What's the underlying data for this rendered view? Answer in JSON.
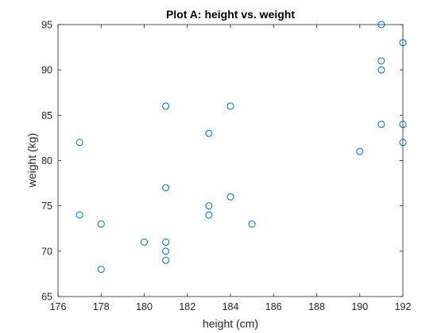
{
  "chart_data": {
    "type": "scatter",
    "title": "Plot A: height vs. weight",
    "xlabel": "height (cm)",
    "ylabel": "weight (kg)",
    "xlim": [
      176,
      192
    ],
    "ylim": [
      65,
      95
    ],
    "xticks": [
      176,
      178,
      180,
      182,
      184,
      186,
      188,
      190,
      192
    ],
    "yticks": [
      65,
      70,
      75,
      80,
      85,
      90,
      95
    ],
    "grid": false,
    "marker": "circle-open",
    "marker_color": "#0072BD",
    "series": [
      {
        "points": [
          {
            "x": 177,
            "y": 82
          },
          {
            "x": 177,
            "y": 74
          },
          {
            "x": 178,
            "y": 73
          },
          {
            "x": 178,
            "y": 68
          },
          {
            "x": 180,
            "y": 71
          },
          {
            "x": 181,
            "y": 86
          },
          {
            "x": 181,
            "y": 77
          },
          {
            "x": 181,
            "y": 71
          },
          {
            "x": 181,
            "y": 70
          },
          {
            "x": 181,
            "y": 69
          },
          {
            "x": 183,
            "y": 83
          },
          {
            "x": 183,
            "y": 75
          },
          {
            "x": 183,
            "y": 74
          },
          {
            "x": 184,
            "y": 86
          },
          {
            "x": 184,
            "y": 76
          },
          {
            "x": 185,
            "y": 73
          },
          {
            "x": 190,
            "y": 81
          },
          {
            "x": 191,
            "y": 95
          },
          {
            "x": 191,
            "y": 91
          },
          {
            "x": 191,
            "y": 90
          },
          {
            "x": 191,
            "y": 84
          },
          {
            "x": 192,
            "y": 93
          },
          {
            "x": 192,
            "y": 84
          },
          {
            "x": 192,
            "y": 82
          }
        ]
      }
    ]
  }
}
